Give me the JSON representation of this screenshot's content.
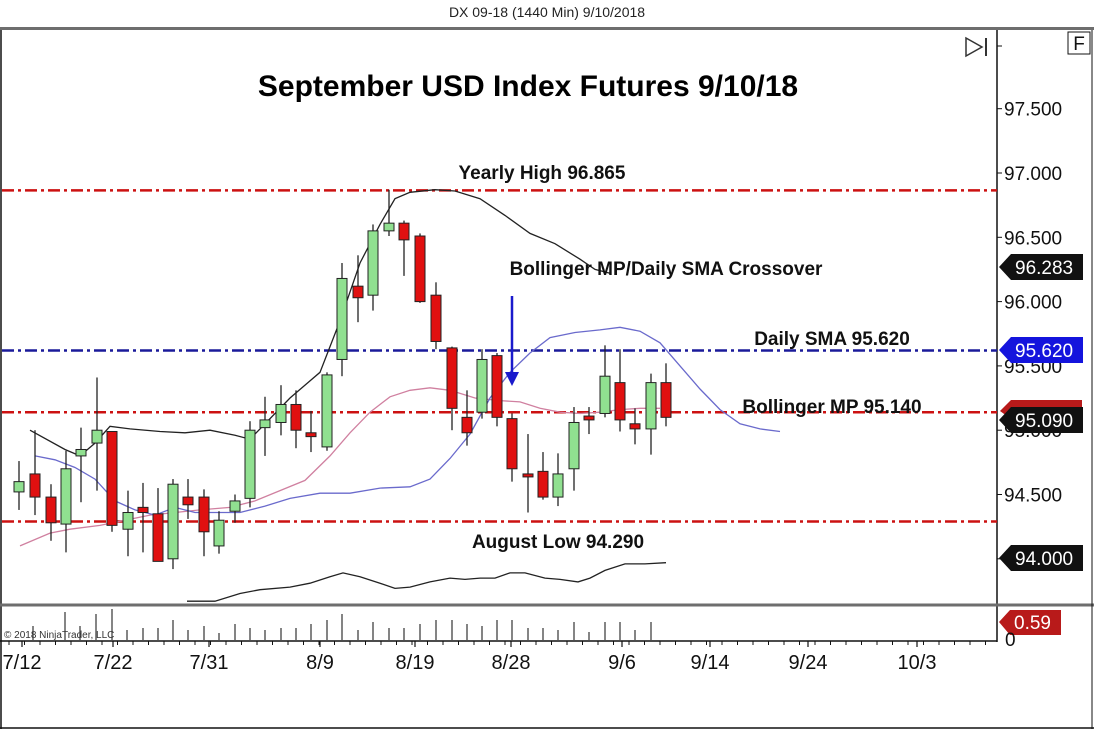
{
  "window": {
    "header": "DX 09-18 (1440 Min)  9/10/2018",
    "f_button": "F",
    "copyright": "© 2018 NinjaTrader, LLC"
  },
  "chart_data": {
    "type": "candlestick",
    "title": "September USD Index Futures 9/10/18",
    "instrument": "DX 09-18",
    "interval": "1440 Min",
    "xlabel": "",
    "ylabel": "",
    "x_ticks": [
      "7/12",
      "7/22",
      "7/31",
      "8/9",
      "8/19",
      "8/28",
      "9/6",
      "9/14",
      "9/24",
      "10/3"
    ],
    "y_ticks": [
      "97.500",
      "97.000",
      "96.500",
      "96.000",
      "95.500",
      "95.000",
      "94.500",
      "94.000"
    ],
    "ylim": [
      93.6,
      97.8
    ],
    "colors": {
      "up": "#90e090",
      "down": "#e01010",
      "yearly_high": "#cc1111",
      "daily_sma": "#1a1a9a",
      "bollinger_mp": "#cc1111",
      "august_low": "#cc1111",
      "arrow": "#1a1acc"
    },
    "horizontal_lines": [
      {
        "name": "Yearly High",
        "label": "Yearly High 96.865",
        "value": 96.865,
        "color": "#cc1111"
      },
      {
        "name": "Daily SMA",
        "label": "Daily SMA 95.620",
        "value": 95.62,
        "color": "#1a1a9a"
      },
      {
        "name": "Bollinger MP",
        "label": "Bollinger MP 95.140",
        "value": 95.14,
        "color": "#cc1111"
      },
      {
        "name": "August Low",
        "label": "August Low 94.290",
        "value": 94.29,
        "color": "#cc1111"
      }
    ],
    "annotations": [
      {
        "text": "Bollinger MP/Daily SMA Crossover",
        "type": "arrow-down",
        "x_date": "8/28"
      }
    ],
    "price_tags": [
      {
        "value": "96.283",
        "bg": "#111111"
      },
      {
        "value": "95.620",
        "bg": "#1414dd"
      },
      {
        "value": "95.090",
        "bg": "#111111"
      },
      {
        "value": "94.000",
        "bg": "#111111"
      }
    ],
    "volume_tag": {
      "value": "0.59",
      "bg": "#b81a1a"
    },
    "volume_axis_tick": "0",
    "candles": [
      {
        "x": 19,
        "o": 94.52,
        "h": 94.76,
        "l": 94.38,
        "c": 94.6
      },
      {
        "x": 35,
        "o": 94.66,
        "h": 95.0,
        "l": 94.34,
        "c": 94.48
      },
      {
        "x": 51,
        "o": 94.48,
        "h": 94.58,
        "l": 94.14,
        "c": 94.28
      },
      {
        "x": 66,
        "o": 94.27,
        "h": 94.84,
        "l": 94.05,
        "c": 94.7
      },
      {
        "x": 81,
        "o": 94.8,
        "h": 95.02,
        "l": 94.44,
        "c": 94.85
      },
      {
        "x": 97,
        "o": 94.9,
        "h": 95.41,
        "l": 94.53,
        "c": 95.0
      },
      {
        "x": 112,
        "o": 94.99,
        "h": 94.99,
        "l": 94.21,
        "c": 94.26
      },
      {
        "x": 128,
        "o": 94.23,
        "h": 94.53,
        "l": 94.02,
        "c": 94.36
      },
      {
        "x": 143,
        "o": 94.4,
        "h": 94.59,
        "l": 94.05,
        "c": 94.36
      },
      {
        "x": 158,
        "o": 94.35,
        "h": 94.55,
        "l": 93.98,
        "c": 93.98
      },
      {
        "x": 173,
        "o": 94.0,
        "h": 94.62,
        "l": 93.92,
        "c": 94.58
      },
      {
        "x": 188,
        "o": 94.48,
        "h": 94.62,
        "l": 94.31,
        "c": 94.42
      },
      {
        "x": 204,
        "o": 94.48,
        "h": 94.54,
        "l": 94.02,
        "c": 94.21
      },
      {
        "x": 219,
        "o": 94.1,
        "h": 94.37,
        "l": 94.04,
        "c": 94.3
      },
      {
        "x": 235,
        "o": 94.37,
        "h": 94.5,
        "l": 94.28,
        "c": 94.45
      },
      {
        "x": 250,
        "o": 94.47,
        "h": 95.07,
        "l": 94.4,
        "c": 95.0
      },
      {
        "x": 265,
        "o": 95.02,
        "h": 95.26,
        "l": 94.8,
        "c": 95.08
      },
      {
        "x": 281,
        "o": 95.06,
        "h": 95.35,
        "l": 94.96,
        "c": 95.2
      },
      {
        "x": 296,
        "o": 95.2,
        "h": 95.31,
        "l": 94.86,
        "c": 95.0
      },
      {
        "x": 311,
        "o": 94.98,
        "h": 95.15,
        "l": 94.83,
        "c": 94.95
      },
      {
        "x": 327,
        "o": 94.87,
        "h": 95.45,
        "l": 94.84,
        "c": 95.43
      },
      {
        "x": 342,
        "o": 95.55,
        "h": 96.3,
        "l": 95.42,
        "c": 96.18
      },
      {
        "x": 358,
        "o": 96.12,
        "h": 96.36,
        "l": 95.84,
        "c": 96.03
      },
      {
        "x": 373,
        "o": 96.05,
        "h": 96.6,
        "l": 95.93,
        "c": 96.55
      },
      {
        "x": 389,
        "o": 96.55,
        "h": 96.87,
        "l": 96.51,
        "c": 96.61
      },
      {
        "x": 404,
        "o": 96.61,
        "h": 96.63,
        "l": 96.2,
        "c": 96.48
      },
      {
        "x": 420,
        "o": 96.51,
        "h": 96.53,
        "l": 95.99,
        "c": 96.0
      },
      {
        "x": 436,
        "o": 96.05,
        "h": 96.15,
        "l": 95.63,
        "c": 95.69
      },
      {
        "x": 452,
        "o": 95.64,
        "h": 95.65,
        "l": 95.0,
        "c": 95.17
      },
      {
        "x": 467,
        "o": 95.1,
        "h": 95.31,
        "l": 94.88,
        "c": 94.98
      },
      {
        "x": 482,
        "o": 95.14,
        "h": 95.63,
        "l": 95.09,
        "c": 95.55
      },
      {
        "x": 497,
        "o": 95.58,
        "h": 95.6,
        "l": 95.03,
        "c": 95.1
      },
      {
        "x": 512,
        "o": 95.09,
        "h": 95.13,
        "l": 94.6,
        "c": 94.7
      },
      {
        "x": 528,
        "o": 94.66,
        "h": 94.97,
        "l": 94.36,
        "c": 94.65
      },
      {
        "x": 543,
        "o": 94.68,
        "h": 94.83,
        "l": 94.46,
        "c": 94.48
      },
      {
        "x": 558,
        "o": 94.48,
        "h": 94.82,
        "l": 94.41,
        "c": 94.66
      },
      {
        "x": 574,
        "o": 94.7,
        "h": 95.18,
        "l": 94.53,
        "c": 95.06
      },
      {
        "x": 589,
        "o": 95.11,
        "h": 95.18,
        "l": 94.97,
        "c": 95.08
      },
      {
        "x": 605,
        "o": 95.13,
        "h": 95.66,
        "l": 95.1,
        "c": 95.42
      },
      {
        "x": 620,
        "o": 95.37,
        "h": 95.63,
        "l": 94.99,
        "c": 95.08
      },
      {
        "x": 635,
        "o": 95.05,
        "h": 95.17,
        "l": 94.89,
        "c": 95.01
      },
      {
        "x": 651,
        "o": 95.01,
        "h": 95.44,
        "l": 94.81,
        "c": 95.37
      },
      {
        "x": 666,
        "o": 95.37,
        "h": 95.52,
        "l": 95.03,
        "c": 95.1
      }
    ],
    "series": [
      {
        "name": "Bollinger Upper",
        "color": "#222222",
        "points": [
          [
            30,
            95.0
          ],
          [
            65,
            94.85
          ],
          [
            80,
            94.8
          ],
          [
            95,
            94.9
          ],
          [
            110,
            95.03
          ],
          [
            130,
            95.01
          ],
          [
            160,
            94.99
          ],
          [
            185,
            94.98
          ],
          [
            210,
            95.0
          ],
          [
            235,
            94.96
          ],
          [
            250,
            94.93
          ],
          [
            265,
            95.05
          ],
          [
            290,
            95.25
          ],
          [
            320,
            95.45
          ],
          [
            340,
            95.85
          ],
          [
            360,
            96.3
          ],
          [
            380,
            96.6
          ],
          [
            395,
            96.8
          ],
          [
            410,
            96.85
          ],
          [
            435,
            96.87
          ],
          [
            455,
            96.86
          ],
          [
            480,
            96.8
          ],
          [
            505,
            96.67
          ],
          [
            530,
            96.53
          ],
          [
            555,
            96.45
          ],
          [
            580,
            96.33
          ],
          [
            595,
            96.25
          ],
          [
            610,
            96.22
          ]
        ]
      },
      {
        "name": "Bollinger MP",
        "color": "#d080a0",
        "points": [
          [
            20,
            94.1
          ],
          [
            50,
            94.2
          ],
          [
            70,
            94.23
          ],
          [
            100,
            94.26
          ],
          [
            125,
            94.3
          ],
          [
            150,
            94.34
          ],
          [
            175,
            94.36
          ],
          [
            200,
            94.38
          ],
          [
            230,
            94.4
          ],
          [
            255,
            94.45
          ],
          [
            280,
            94.53
          ],
          [
            305,
            94.61
          ],
          [
            330,
            94.8
          ],
          [
            350,
            94.98
          ],
          [
            370,
            95.14
          ],
          [
            390,
            95.26
          ],
          [
            410,
            95.31
          ],
          [
            430,
            95.33
          ],
          [
            450,
            95.31
          ],
          [
            475,
            95.25
          ],
          [
            500,
            95.23
          ],
          [
            520,
            95.22
          ],
          [
            540,
            95.17
          ],
          [
            560,
            95.14
          ],
          [
            580,
            95.13
          ],
          [
            600,
            95.14
          ],
          [
            620,
            95.16
          ],
          [
            640,
            95.17
          ],
          [
            660,
            95.17
          ]
        ]
      },
      {
        "name": "Daily SMA",
        "color": "#6a6acc",
        "points": [
          [
            35,
            94.8
          ],
          [
            55,
            94.77
          ],
          [
            75,
            94.71
          ],
          [
            95,
            94.62
          ],
          [
            115,
            94.45
          ],
          [
            135,
            94.38
          ],
          [
            155,
            94.34
          ],
          [
            175,
            94.4
          ],
          [
            195,
            94.36
          ],
          [
            215,
            94.36
          ],
          [
            240,
            94.36
          ],
          [
            265,
            94.41
          ],
          [
            290,
            94.47
          ],
          [
            320,
            94.51
          ],
          [
            350,
            94.51
          ],
          [
            380,
            94.55
          ],
          [
            410,
            94.56
          ],
          [
            430,
            94.62
          ],
          [
            450,
            94.78
          ],
          [
            470,
            94.97
          ],
          [
            490,
            95.25
          ],
          [
            510,
            95.45
          ],
          [
            530,
            95.6
          ],
          [
            550,
            95.72
          ],
          [
            575,
            95.76
          ],
          [
            600,
            95.78
          ],
          [
            620,
            95.8
          ],
          [
            640,
            95.77
          ],
          [
            660,
            95.68
          ],
          [
            680,
            95.5
          ],
          [
            700,
            95.32
          ],
          [
            720,
            95.16
          ],
          [
            740,
            95.05
          ],
          [
            760,
            95.01
          ],
          [
            780,
            94.99
          ]
        ]
      },
      {
        "name": "Bollinger Lower (visible part)",
        "color": "#222222",
        "points": [
          [
            187,
            93.67
          ],
          [
            215,
            93.67
          ],
          [
            240,
            93.73
          ],
          [
            260,
            93.76
          ],
          [
            290,
            93.78
          ],
          [
            310,
            93.81
          ],
          [
            330,
            93.86
          ],
          [
            343,
            93.89
          ],
          [
            360,
            93.86
          ],
          [
            380,
            93.81
          ],
          [
            395,
            93.77
          ],
          [
            410,
            93.78
          ],
          [
            430,
            93.82
          ],
          [
            450,
            93.85
          ],
          [
            465,
            93.84
          ],
          [
            480,
            93.85
          ],
          [
            495,
            93.85
          ],
          [
            510,
            93.89
          ],
          [
            525,
            93.89
          ],
          [
            545,
            93.85
          ],
          [
            560,
            93.84
          ],
          [
            578,
            93.82
          ],
          [
            590,
            93.85
          ],
          [
            605,
            93.91
          ],
          [
            625,
            93.96
          ],
          [
            645,
            93.96
          ],
          [
            666,
            93.97
          ]
        ]
      }
    ],
    "volume_bars": [
      {
        "x": 33,
        "h": 14
      },
      {
        "x": 65,
        "h": 28
      },
      {
        "x": 80,
        "h": 14
      },
      {
        "x": 96,
        "h": 26
      },
      {
        "x": 112,
        "h": 31
      },
      {
        "x": 127,
        "h": 10
      },
      {
        "x": 143,
        "h": 12
      },
      {
        "x": 158,
        "h": 12
      },
      {
        "x": 173,
        "h": 20
      },
      {
        "x": 188,
        "h": 10
      },
      {
        "x": 204,
        "h": 14
      },
      {
        "x": 219,
        "h": 7
      },
      {
        "x": 235,
        "h": 16
      },
      {
        "x": 250,
        "h": 12
      },
      {
        "x": 265,
        "h": 10
      },
      {
        "x": 281,
        "h": 12
      },
      {
        "x": 296,
        "h": 12
      },
      {
        "x": 311,
        "h": 16
      },
      {
        "x": 327,
        "h": 20
      },
      {
        "x": 342,
        "h": 26
      },
      {
        "x": 358,
        "h": 10
      },
      {
        "x": 373,
        "h": 18
      },
      {
        "x": 389,
        "h": 12
      },
      {
        "x": 404,
        "h": 12
      },
      {
        "x": 420,
        "h": 16
      },
      {
        "x": 436,
        "h": 20
      },
      {
        "x": 452,
        "h": 20
      },
      {
        "x": 467,
        "h": 16
      },
      {
        "x": 482,
        "h": 14
      },
      {
        "x": 497,
        "h": 20
      },
      {
        "x": 512,
        "h": 20
      },
      {
        "x": 528,
        "h": 12
      },
      {
        "x": 543,
        "h": 12
      },
      {
        "x": 558,
        "h": 10
      },
      {
        "x": 574,
        "h": 18
      },
      {
        "x": 589,
        "h": 8
      },
      {
        "x": 605,
        "h": 18
      },
      {
        "x": 620,
        "h": 18
      },
      {
        "x": 635,
        "h": 10
      },
      {
        "x": 651,
        "h": 18
      }
    ]
  }
}
